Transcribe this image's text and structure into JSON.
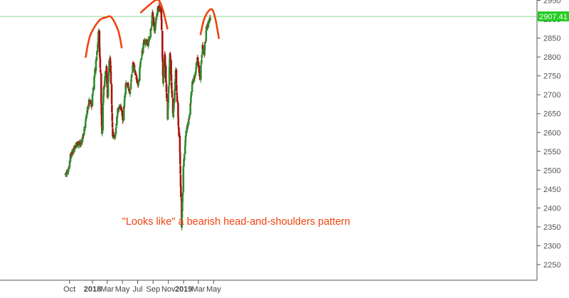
{
  "chart_data": {
    "type": "candlestick",
    "title": "",
    "xlabel": "",
    "ylabel": "",
    "ylim": [
      2200,
      2960
    ],
    "grid": false,
    "x_tick_labels": [
      {
        "label": "Oct",
        "date": "2017-10-01",
        "bold": false
      },
      {
        "label": "2018",
        "date": "2018-01-01",
        "bold": true
      },
      {
        "label": "Mar",
        "date": "2018-03-01",
        "bold": false
      },
      {
        "label": "May",
        "date": "2018-05-01",
        "bold": false
      },
      {
        "label": "Jul",
        "date": "2018-07-01",
        "bold": false
      },
      {
        "label": "Sep",
        "date": "2018-09-01",
        "bold": false
      },
      {
        "label": "Nov",
        "date": "2018-11-01",
        "bold": false
      },
      {
        "label": "2019",
        "date": "2019-01-01",
        "bold": true
      },
      {
        "label": "Mar",
        "date": "2019-03-01",
        "bold": false
      },
      {
        "label": "May",
        "date": "2019-05-01",
        "bold": false
      }
    ],
    "y_tick_labels": [
      "2950",
      "2900",
      "2850",
      "2800",
      "2750",
      "2700",
      "2650",
      "2600",
      "2550",
      "2500",
      "2450",
      "2400",
      "2350",
      "2300",
      "2250"
    ],
    "y_ticks": [
      2950,
      2900,
      2850,
      2800,
      2750,
      2700,
      2650,
      2600,
      2550,
      2500,
      2450,
      2400,
      2350,
      2300,
      2250
    ],
    "last_price": {
      "value": 2907.41,
      "label": "2907.41",
      "color": "#22cc22"
    },
    "annotation": {
      "text": "\"Looks like\" a bearish head-and-shoulders pattern",
      "color": "#ee4411"
    },
    "colors": {
      "up": "#2e8b2e",
      "down": "#aa1111",
      "annotation": "#ee4411",
      "axis": "#555555"
    },
    "pattern_arcs": [
      {
        "name": "left-shoulder",
        "points": [
          [
            "2017-12-05",
            2800
          ],
          [
            "2017-12-22",
            2855
          ],
          [
            "2018-01-26",
            2895
          ],
          [
            "2018-02-25",
            2905
          ],
          [
            "2018-03-18",
            2905
          ],
          [
            "2018-04-14",
            2870
          ],
          [
            "2018-04-28",
            2825
          ]
        ]
      },
      {
        "name": "head",
        "points": [
          [
            "2018-07-14",
            2918
          ],
          [
            "2018-08-12",
            2935
          ],
          [
            "2018-09-10",
            2950
          ],
          [
            "2018-09-26",
            2948
          ],
          [
            "2018-10-12",
            2920
          ],
          [
            "2018-10-28",
            2875
          ]
        ]
      },
      {
        "name": "right-shoulder",
        "points": [
          [
            "2019-03-10",
            2860
          ],
          [
            "2019-03-24",
            2900
          ],
          [
            "2019-04-14",
            2924
          ],
          [
            "2019-04-28",
            2923
          ],
          [
            "2019-05-10",
            2895
          ],
          [
            "2019-05-22",
            2850
          ]
        ]
      }
    ],
    "price_path": [
      [
        "2017-09-14",
        2490
      ],
      [
        "2017-09-25",
        2498
      ],
      [
        "2017-10-05",
        2535
      ],
      [
        "2017-10-20",
        2560
      ],
      [
        "2017-11-01",
        2572
      ],
      [
        "2017-11-15",
        2568
      ],
      [
        "2017-11-28",
        2600
      ],
      [
        "2017-12-06",
        2640
      ],
      [
        "2017-12-18",
        2680
      ],
      [
        "2017-12-29",
        2675
      ],
      [
        "2018-01-08",
        2745
      ],
      [
        "2018-01-17",
        2800
      ],
      [
        "2018-01-26",
        2870
      ],
      [
        "2018-02-02",
        2760
      ],
      [
        "2018-02-08",
        2590
      ],
      [
        "2018-02-15",
        2720
      ],
      [
        "2018-02-26",
        2780
      ],
      [
        "2018-03-02",
        2690
      ],
      [
        "2018-03-09",
        2785
      ],
      [
        "2018-03-13",
        2795
      ],
      [
        "2018-03-23",
        2595
      ],
      [
        "2018-04-02",
        2585
      ],
      [
        "2018-04-12",
        2660
      ],
      [
        "2018-04-20",
        2670
      ],
      [
        "2018-04-27",
        2660
      ],
      [
        "2018-05-03",
        2630
      ],
      [
        "2018-05-14",
        2725
      ],
      [
        "2018-05-22",
        2725
      ],
      [
        "2018-05-31",
        2705
      ],
      [
        "2018-06-12",
        2785
      ],
      [
        "2018-06-22",
        2755
      ],
      [
        "2018-07-02",
        2725
      ],
      [
        "2018-07-16",
        2800
      ],
      [
        "2018-07-26",
        2840
      ],
      [
        "2018-08-10",
        2835
      ],
      [
        "2018-08-20",
        2855
      ],
      [
        "2018-08-29",
        2915
      ],
      [
        "2018-09-07",
        2870
      ],
      [
        "2018-09-20",
        2930
      ],
      [
        "2018-10-03",
        2925
      ],
      [
        "2018-10-11",
        2730
      ],
      [
        "2018-10-17",
        2810
      ],
      [
        "2018-10-29",
        2640
      ],
      [
        "2018-11-07",
        2815
      ],
      [
        "2018-11-20",
        2640
      ],
      [
        "2018-11-30",
        2760
      ],
      [
        "2018-12-10",
        2635
      ],
      [
        "2018-12-17",
        2545
      ],
      [
        "2018-12-24",
        2350
      ],
      [
        "2018-12-31",
        2505
      ],
      [
        "2019-01-10",
        2595
      ],
      [
        "2019-01-23",
        2635
      ],
      [
        "2019-02-05",
        2735
      ],
      [
        "2019-02-14",
        2745
      ],
      [
        "2019-02-25",
        2795
      ],
      [
        "2019-03-08",
        2745
      ],
      [
        "2019-03-18",
        2830
      ],
      [
        "2019-03-25",
        2810
      ],
      [
        "2019-04-01",
        2870
      ],
      [
        "2019-04-10",
        2890
      ],
      [
        "2019-04-18",
        2907.41
      ]
    ]
  }
}
